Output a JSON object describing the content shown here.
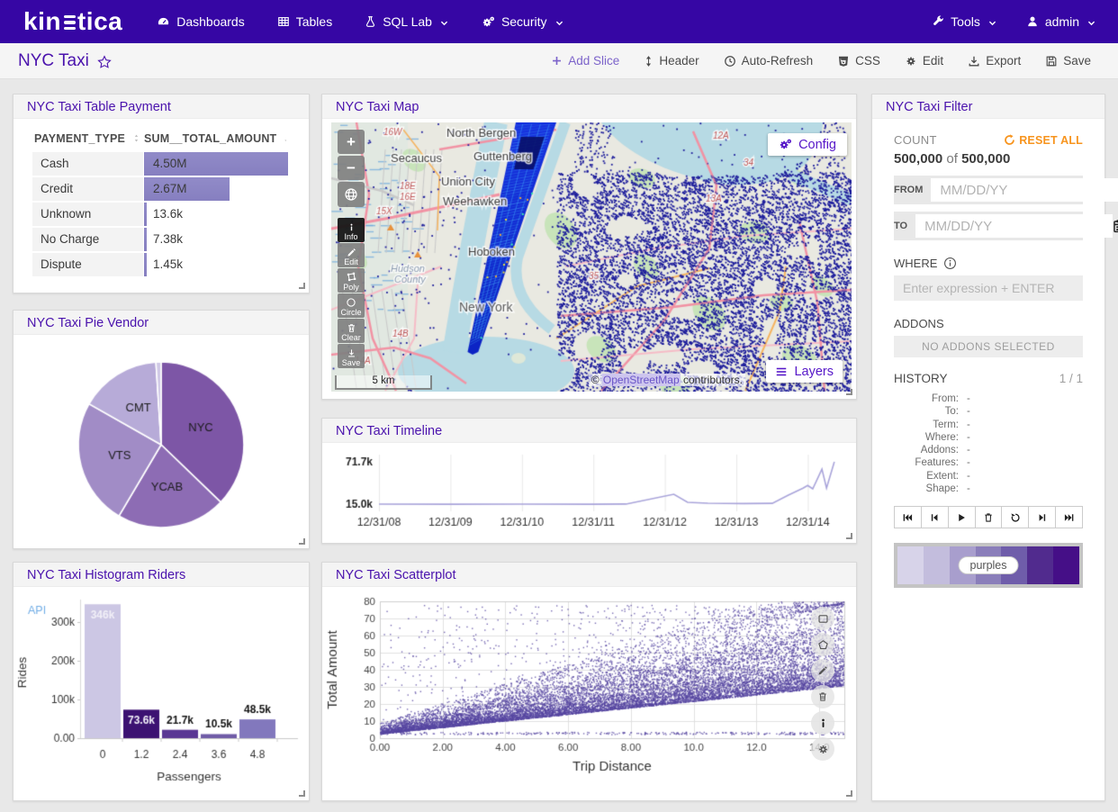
{
  "navbar": {
    "logo": "kinetica",
    "logo_prefix": "kin",
    "logo_suffix": "tica",
    "items": [
      {
        "label": "Dashboards",
        "icon": "dashboard"
      },
      {
        "label": "Tables",
        "icon": "table"
      },
      {
        "label": "SQL Lab",
        "icon": "flask",
        "chevron": true
      },
      {
        "label": "Security",
        "icon": "gears",
        "chevron": true
      }
    ],
    "right_items": [
      {
        "label": "Tools",
        "icon": "wrench",
        "chevron": true
      },
      {
        "label": "admin",
        "icon": "user",
        "chevron": true
      }
    ]
  },
  "toolbar": {
    "title": "NYC Taxi",
    "actions": [
      "Add Slice",
      "Header",
      "Auto-Refresh",
      "CSS",
      "Edit",
      "Export",
      "Save"
    ]
  },
  "panels": {
    "table": {
      "title": "NYC Taxi Table Payment"
    },
    "pie": {
      "title": "NYC Taxi Pie Vendor"
    },
    "histogram": {
      "title": "NYC Taxi Histogram Riders",
      "badge": "API"
    },
    "map": {
      "title": "NYC Taxi Map",
      "controls": {
        "zoom_in": "+",
        "zoom_out": "−",
        "info": "Info",
        "edit": "Edit",
        "poly": "Poly",
        "circle": "Circle",
        "clear": "Clear",
        "save": "Save"
      },
      "config_label": "Config",
      "layers_label": "Layers",
      "scale_label": "5 km",
      "attribution_prefix": "©",
      "attribution_link": "OpenStreetMap",
      "attribution_suffix": "contributors.",
      "place_labels": [
        "North Bergen",
        "Guttenberg",
        "Secaucus",
        "Union City",
        "Weehawken",
        "Hoboken",
        "New York",
        "Hudson",
        "County"
      ],
      "road_labels": [
        "16W",
        "18E",
        "16E",
        "15X",
        "14B",
        "14A",
        "12A",
        "13A",
        "35",
        "34"
      ]
    },
    "timeline": {
      "title": "NYC Taxi Timeline"
    },
    "scatter": {
      "title": "NYC Taxi Scatterplot"
    },
    "filter": {
      "title": "NYC Taxi Filter",
      "count_label": "COUNT",
      "reset_label": "RESET ALL",
      "count_current": "500,000",
      "count_of": "of",
      "count_total": "500,000",
      "from_label": "FROM",
      "to_label": "TO",
      "date_placeholder": "MM/DD/YY",
      "where_label": "WHERE",
      "expression_placeholder": "Enter expression + ENTER",
      "addons_label": "ADDONS",
      "addons_value": "NO ADDONS SELECTED",
      "history_label": "HISTORY",
      "history_page": "1 / 1",
      "history_entries": [
        {
          "key": "From:",
          "value": "-"
        },
        {
          "key": "To:",
          "value": "-"
        },
        {
          "key": "Term:",
          "value": "-"
        },
        {
          "key": "Where:",
          "value": "-"
        },
        {
          "key": "Addons:",
          "value": "-"
        },
        {
          "key": "Features:",
          "value": "-"
        },
        {
          "key": "Extent:",
          "value": "-"
        },
        {
          "key": "Shape:",
          "value": "-"
        }
      ],
      "playback_buttons": [
        "skip-to-start",
        "step-back",
        "play",
        "delete",
        "undo",
        "step-forward",
        "skip-to-end"
      ],
      "palette": {
        "name": "purples",
        "colors": [
          "#d7d3e9",
          "#c3bddd",
          "#a89ecd",
          "#8a7eba",
          "#6f5daa",
          "#512b8e",
          "#450f87"
        ]
      }
    }
  },
  "chart_data": [
    {
      "type": "table",
      "title": "NYC Taxi Table Payment",
      "columns": [
        "PAYMENT_TYPE",
        "SUM__TOTAL_AMOUNT"
      ],
      "rows": [
        [
          "Cash",
          "4.50M"
        ],
        [
          "Credit",
          "2.67M"
        ],
        [
          "Unknown",
          "13.6k"
        ],
        [
          "No Charge",
          "7.38k"
        ],
        [
          "Dispute",
          "1.45k"
        ]
      ],
      "values": [
        4500000,
        2670000,
        13600,
        7380,
        1450
      ],
      "bar_fractions": [
        1,
        0.595,
        0.019,
        0.019,
        0.019
      ],
      "bar_color": "#8b85c3"
    },
    {
      "type": "pie",
      "title": "NYC Taxi Pie Vendor",
      "labels": [
        "NYC",
        "YCAB",
        "VTS",
        "CMT",
        ""
      ],
      "values": [
        37.2,
        21.3,
        24.7,
        15.8,
        1.0
      ],
      "colors": [
        "#7d56a6",
        "#8d6cb4",
        "#a18cc6",
        "#b7abd8",
        "#cfc8e6"
      ]
    },
    {
      "type": "bar",
      "title": "NYC Taxi Histogram Riders",
      "categories": [
        "0",
        "1.2",
        "2.4",
        "3.6",
        "4.8"
      ],
      "values": [
        346000,
        73600,
        21700,
        10500,
        48500
      ],
      "value_labels": [
        "346k",
        "73.6k",
        "21.7k",
        "10.5k",
        "48.5k"
      ],
      "colors": [
        "#ccc7e4",
        "#3c1272",
        "#5a3794",
        "#6f5ba6",
        "#8278bd"
      ],
      "label_inside": [
        true,
        true,
        false,
        false,
        false
      ],
      "xlabel": "Passengers",
      "ylabel": "Rides",
      "yticks": [
        "0.00",
        "100k",
        "200k",
        "300k"
      ],
      "ytick_values": [
        0,
        100000,
        200000,
        300000
      ]
    },
    {
      "type": "line",
      "title": "NYC Taxi Timeline",
      "ylabels": [
        "71.7k",
        "15.0k"
      ],
      "ymin": 15.0,
      "ymax": 71.7,
      "xticks": [
        "12/31/08",
        "12/31/09",
        "12/31/10",
        "12/31/11",
        "12/31/12",
        "12/31/13",
        "12/31/14"
      ],
      "color": "#a9a4da",
      "points": [
        [
          0,
          15.0
        ],
        [
          0.153,
          14.8
        ],
        [
          0.308,
          15.0
        ],
        [
          0.463,
          14.9
        ],
        [
          0.537,
          15.1
        ],
        [
          0.641,
          28.3
        ],
        [
          0.671,
          17.5
        ],
        [
          0.715,
          16.2
        ],
        [
          0.793,
          15.7
        ],
        [
          0.855,
          16.0
        ],
        [
          0.89,
          27.0
        ],
        [
          0.922,
          36.5
        ],
        [
          0.932,
          40.0
        ],
        [
          0.943,
          35.5
        ],
        [
          0.963,
          62.0
        ],
        [
          0.973,
          36.5
        ],
        [
          0.99,
          71.7
        ]
      ]
    },
    {
      "type": "scatter",
      "title": "NYC Taxi Scatterplot",
      "xlabel": "Trip Distance",
      "ylabel": "Total Amount",
      "xticks": [
        "0.00",
        "2.00",
        "4.00",
        "6.00",
        "8.00",
        "10.0",
        "12.0",
        "14.0"
      ],
      "xtick_values": [
        0,
        2,
        4,
        6,
        8,
        10,
        12,
        14
      ],
      "yticks": [
        "0",
        "10",
        "20",
        "30",
        "40",
        "50",
        "60",
        "70",
        "80"
      ],
      "ytick_values": [
        0,
        10,
        20,
        30,
        40,
        50,
        60,
        70,
        80
      ],
      "xlim": [
        0,
        14.8
      ],
      "ylim": [
        0,
        80
      ],
      "color": "#5b4aa5",
      "band_lower": "y≈2.8+1.9x",
      "band_upper": "y≈5+3.4x"
    }
  ]
}
